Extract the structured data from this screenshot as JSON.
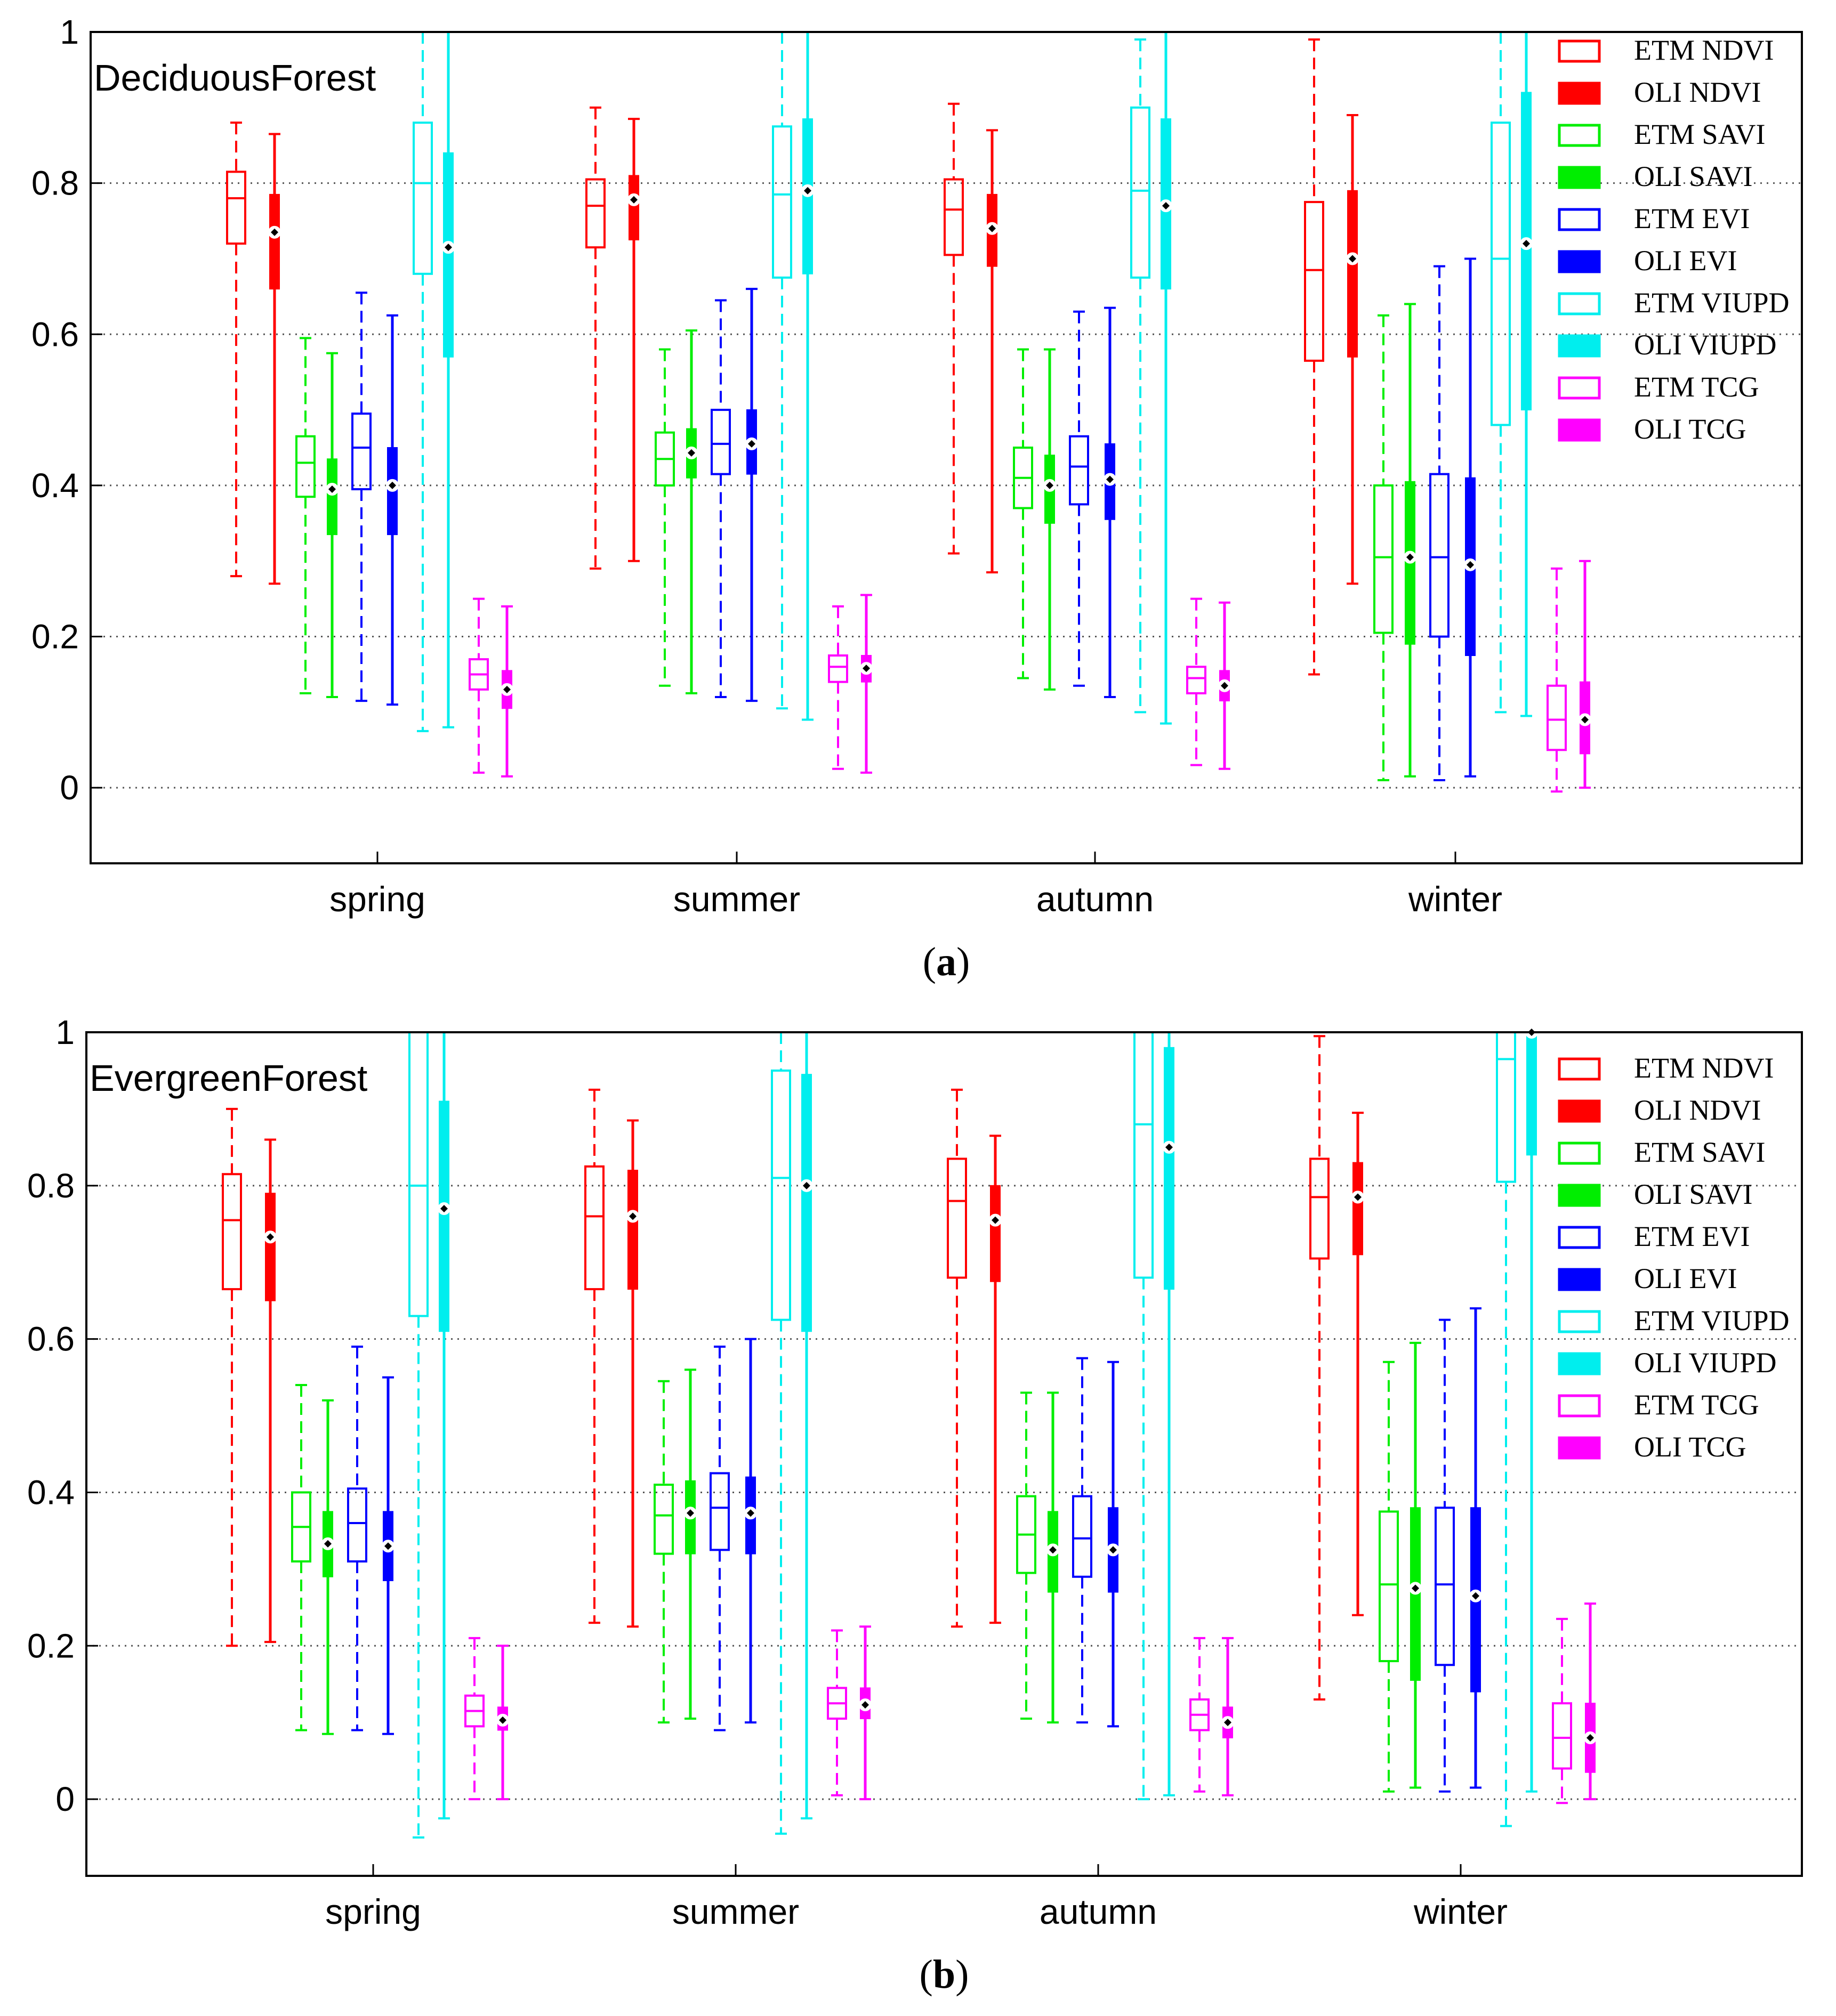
{
  "chart_data": [
    {
      "type": "box",
      "panel_label": "a",
      "title": "DeciduousForest",
      "categories": [
        "spring",
        "summer",
        "autumn",
        "winter"
      ],
      "ylim": [
        -0.1,
        1
      ],
      "yticks": [
        0,
        0.2,
        0.4,
        0.6,
        0.8,
        1
      ],
      "ytick_labels": [
        "0",
        "0.2",
        "0.4",
        "0.6",
        "0.8",
        "1"
      ],
      "grid": "horizontal dotted",
      "legend_position": "top-right",
      "series": [
        {
          "name": "ETM NDVI",
          "color": "#ff0000",
          "style": "etm",
          "data": [
            {
              "wmin": 0.28,
              "q1": 0.72,
              "median": 0.78,
              "q3": 0.815,
              "wmax": 0.88,
              "mean": null
            },
            {
              "wmin": 0.29,
              "q1": 0.715,
              "median": 0.77,
              "q3": 0.805,
              "wmax": 0.9,
              "mean": null
            },
            {
              "wmin": 0.31,
              "q1": 0.705,
              "median": 0.765,
              "q3": 0.805,
              "wmax": 0.905,
              "mean": null
            },
            {
              "wmin": 0.15,
              "q1": 0.565,
              "median": 0.685,
              "q3": 0.775,
              "wmax": 0.99,
              "mean": null
            }
          ]
        },
        {
          "name": "OLI NDVI",
          "color": "#ff0000",
          "style": "oli",
          "data": [
            {
              "wmin": 0.27,
              "q1": 0.66,
              "median": 0.735,
              "q3": 0.785,
              "wmax": 0.865,
              "mean": 0.735
            },
            {
              "wmin": 0.3,
              "q1": 0.725,
              "median": 0.78,
              "q3": 0.81,
              "wmax": 0.885,
              "mean": 0.778
            },
            {
              "wmin": 0.285,
              "q1": 0.69,
              "median": 0.74,
              "q3": 0.785,
              "wmax": 0.87,
              "mean": 0.74
            },
            {
              "wmin": 0.27,
              "q1": 0.57,
              "median": 0.7,
              "q3": 0.79,
              "wmax": 0.89,
              "mean": 0.7
            }
          ]
        },
        {
          "name": "ETM SAVI",
          "color": "#00ee00",
          "style": "etm",
          "data": [
            {
              "wmin": 0.125,
              "q1": 0.385,
              "median": 0.43,
              "q3": 0.465,
              "wmax": 0.595,
              "mean": null
            },
            {
              "wmin": 0.135,
              "q1": 0.4,
              "median": 0.435,
              "q3": 0.47,
              "wmax": 0.58,
              "mean": null
            },
            {
              "wmin": 0.145,
              "q1": 0.37,
              "median": 0.41,
              "q3": 0.45,
              "wmax": 0.58,
              "mean": null
            },
            {
              "wmin": 0.01,
              "q1": 0.205,
              "median": 0.305,
              "q3": 0.4,
              "wmax": 0.625,
              "mean": null
            }
          ]
        },
        {
          "name": "OLI SAVI",
          "color": "#00ee00",
          "style": "oli",
          "data": [
            {
              "wmin": 0.12,
              "q1": 0.335,
              "median": 0.395,
              "q3": 0.435,
              "wmax": 0.575,
              "mean": 0.395
            },
            {
              "wmin": 0.125,
              "q1": 0.41,
              "median": 0.445,
              "q3": 0.475,
              "wmax": 0.605,
              "mean": 0.443
            },
            {
              "wmin": 0.13,
              "q1": 0.35,
              "median": 0.4,
              "q3": 0.44,
              "wmax": 0.58,
              "mean": 0.4
            },
            {
              "wmin": 0.015,
              "q1": 0.19,
              "median": 0.305,
              "q3": 0.405,
              "wmax": 0.64,
              "mean": 0.305
            }
          ]
        },
        {
          "name": "ETM EVI",
          "color": "#0000ff",
          "style": "etm",
          "data": [
            {
              "wmin": 0.115,
              "q1": 0.395,
              "median": 0.45,
              "q3": 0.495,
              "wmax": 0.655,
              "mean": null
            },
            {
              "wmin": 0.12,
              "q1": 0.415,
              "median": 0.455,
              "q3": 0.5,
              "wmax": 0.645,
              "mean": null
            },
            {
              "wmin": 0.135,
              "q1": 0.375,
              "median": 0.425,
              "q3": 0.465,
              "wmax": 0.63,
              "mean": null
            },
            {
              "wmin": 0.01,
              "q1": 0.2,
              "median": 0.305,
              "q3": 0.415,
              "wmax": 0.69,
              "mean": null
            }
          ]
        },
        {
          "name": "OLI EVI",
          "color": "#0000ff",
          "style": "oli",
          "data": [
            {
              "wmin": 0.11,
              "q1": 0.335,
              "median": 0.4,
              "q3": 0.45,
              "wmax": 0.625,
              "mean": 0.4
            },
            {
              "wmin": 0.115,
              "q1": 0.415,
              "median": 0.455,
              "q3": 0.5,
              "wmax": 0.66,
              "mean": 0.455
            },
            {
              "wmin": 0.12,
              "q1": 0.355,
              "median": 0.41,
              "q3": 0.455,
              "wmax": 0.635,
              "mean": 0.408
            },
            {
              "wmin": 0.015,
              "q1": 0.175,
              "median": 0.295,
              "q3": 0.41,
              "wmax": 0.7,
              "mean": 0.295
            }
          ]
        },
        {
          "name": "ETM VIUPD",
          "color": "#00eeee",
          "style": "etm",
          "data": [
            {
              "wmin": 0.075,
              "q1": 0.68,
              "median": 0.8,
              "q3": 0.88,
              "wmax": 1.0,
              "mean": null
            },
            {
              "wmin": 0.105,
              "q1": 0.675,
              "median": 0.785,
              "q3": 0.875,
              "wmax": 1.0,
              "mean": null
            },
            {
              "wmin": 0.1,
              "q1": 0.675,
              "median": 0.79,
              "q3": 0.9,
              "wmax": 0.99,
              "mean": null
            },
            {
              "wmin": 0.1,
              "q1": 0.48,
              "median": 0.7,
              "q3": 0.88,
              "wmax": 1.0,
              "mean": null
            }
          ]
        },
        {
          "name": "OLI VIUPD",
          "color": "#00eeee",
          "style": "oli",
          "data": [
            {
              "wmin": 0.08,
              "q1": 0.57,
              "median": 0.715,
              "q3": 0.84,
              "wmax": 1.0,
              "mean": 0.715
            },
            {
              "wmin": 0.09,
              "q1": 0.68,
              "median": 0.79,
              "q3": 0.885,
              "wmax": 1.0,
              "mean": 0.79
            },
            {
              "wmin": 0.085,
              "q1": 0.66,
              "median": 0.77,
              "q3": 0.885,
              "wmax": 1.0,
              "mean": 0.77
            },
            {
              "wmin": 0.095,
              "q1": 0.5,
              "median": 0.72,
              "q3": 0.92,
              "wmax": 1.0,
              "mean": 0.72
            }
          ]
        },
        {
          "name": "ETM TCG",
          "color": "#ff00ff",
          "style": "etm",
          "data": [
            {
              "wmin": 0.02,
              "q1": 0.13,
              "median": 0.15,
              "q3": 0.17,
              "wmax": 0.25,
              "mean": null
            },
            {
              "wmin": 0.025,
              "q1": 0.14,
              "median": 0.16,
              "q3": 0.175,
              "wmax": 0.24,
              "mean": null
            },
            {
              "wmin": 0.03,
              "q1": 0.125,
              "median": 0.145,
              "q3": 0.16,
              "wmax": 0.25,
              "mean": null
            },
            {
              "wmin": -0.005,
              "q1": 0.05,
              "median": 0.09,
              "q3": 0.135,
              "wmax": 0.29,
              "mean": null
            }
          ]
        },
        {
          "name": "OLI TCG",
          "color": "#ff00ff",
          "style": "oli",
          "data": [
            {
              "wmin": 0.015,
              "q1": 0.105,
              "median": 0.13,
              "q3": 0.155,
              "wmax": 0.24,
              "mean": 0.13
            },
            {
              "wmin": 0.02,
              "q1": 0.14,
              "median": 0.16,
              "q3": 0.175,
              "wmax": 0.255,
              "mean": 0.158
            },
            {
              "wmin": 0.025,
              "q1": 0.115,
              "median": 0.135,
              "q3": 0.155,
              "wmax": 0.245,
              "mean": 0.135
            },
            {
              "wmin": 0.0,
              "q1": 0.045,
              "median": 0.09,
              "q3": 0.14,
              "wmax": 0.3,
              "mean": 0.09
            }
          ]
        }
      ]
    },
    {
      "type": "box",
      "panel_label": "b",
      "title": "EvergreenForest",
      "categories": [
        "spring",
        "summer",
        "autumn",
        "winter"
      ],
      "ylim": [
        -0.1,
        1
      ],
      "yticks": [
        0,
        0.2,
        0.4,
        0.6,
        0.8,
        1
      ],
      "ytick_labels": [
        "0",
        "0.2",
        "0.4",
        "0.6",
        "0.8",
        "1"
      ],
      "grid": "horizontal dotted",
      "legend_position": "top-right",
      "series": [
        {
          "name": "ETM NDVI",
          "color": "#ff0000",
          "style": "etm",
          "data": [
            {
              "wmin": 0.2,
              "q1": 0.665,
              "median": 0.755,
              "q3": 0.815,
              "wmax": 0.9,
              "mean": null
            },
            {
              "wmin": 0.23,
              "q1": 0.665,
              "median": 0.76,
              "q3": 0.825,
              "wmax": 0.925,
              "mean": null
            },
            {
              "wmin": 0.225,
              "q1": 0.68,
              "median": 0.78,
              "q3": 0.835,
              "wmax": 0.925,
              "mean": null
            },
            {
              "wmin": 0.13,
              "q1": 0.705,
              "median": 0.785,
              "q3": 0.835,
              "wmax": 0.995,
              "mean": null
            }
          ]
        },
        {
          "name": "OLI NDVI",
          "color": "#ff0000",
          "style": "oli",
          "data": [
            {
              "wmin": 0.205,
              "q1": 0.65,
              "median": 0.735,
              "q3": 0.79,
              "wmax": 0.86,
              "mean": 0.733
            },
            {
              "wmin": 0.225,
              "q1": 0.665,
              "median": 0.76,
              "q3": 0.82,
              "wmax": 0.885,
              "mean": 0.76
            },
            {
              "wmin": 0.23,
              "q1": 0.675,
              "median": 0.755,
              "q3": 0.8,
              "wmax": 0.865,
              "mean": 0.755
            },
            {
              "wmin": 0.24,
              "q1": 0.71,
              "median": 0.785,
              "q3": 0.83,
              "wmax": 0.895,
              "mean": 0.785
            }
          ]
        },
        {
          "name": "ETM SAVI",
          "color": "#00ee00",
          "style": "etm",
          "data": [
            {
              "wmin": 0.09,
              "q1": 0.31,
              "median": 0.355,
              "q3": 0.4,
              "wmax": 0.54,
              "mean": null
            },
            {
              "wmin": 0.1,
              "q1": 0.32,
              "median": 0.37,
              "q3": 0.41,
              "wmax": 0.545,
              "mean": null
            },
            {
              "wmin": 0.105,
              "q1": 0.295,
              "median": 0.345,
              "q3": 0.395,
              "wmax": 0.53,
              "mean": null
            },
            {
              "wmin": 0.01,
              "q1": 0.18,
              "median": 0.28,
              "q3": 0.375,
              "wmax": 0.57,
              "mean": null
            }
          ]
        },
        {
          "name": "OLI SAVI",
          "color": "#00ee00",
          "style": "oli",
          "data": [
            {
              "wmin": 0.085,
              "q1": 0.29,
              "median": 0.335,
              "q3": 0.375,
              "wmax": 0.52,
              "mean": 0.333
            },
            {
              "wmin": 0.105,
              "q1": 0.32,
              "median": 0.375,
              "q3": 0.415,
              "wmax": 0.56,
              "mean": 0.373
            },
            {
              "wmin": 0.1,
              "q1": 0.27,
              "median": 0.325,
              "q3": 0.375,
              "wmax": 0.53,
              "mean": 0.325
            },
            {
              "wmin": 0.015,
              "q1": 0.155,
              "median": 0.275,
              "q3": 0.38,
              "wmax": 0.595,
              "mean": 0.275
            }
          ]
        },
        {
          "name": "ETM EVI",
          "color": "#0000ff",
          "style": "etm",
          "data": [
            {
              "wmin": 0.09,
              "q1": 0.31,
              "median": 0.36,
              "q3": 0.405,
              "wmax": 0.59,
              "mean": null
            },
            {
              "wmin": 0.09,
              "q1": 0.325,
              "median": 0.38,
              "q3": 0.425,
              "wmax": 0.59,
              "mean": null
            },
            {
              "wmin": 0.1,
              "q1": 0.29,
              "median": 0.34,
              "q3": 0.395,
              "wmax": 0.575,
              "mean": null
            },
            {
              "wmin": 0.01,
              "q1": 0.175,
              "median": 0.28,
              "q3": 0.38,
              "wmax": 0.625,
              "mean": null
            }
          ]
        },
        {
          "name": "OLI EVI",
          "color": "#0000ff",
          "style": "oli",
          "data": [
            {
              "wmin": 0.085,
              "q1": 0.285,
              "median": 0.33,
              "q3": 0.375,
              "wmax": 0.55,
              "mean": 0.33
            },
            {
              "wmin": 0.1,
              "q1": 0.32,
              "median": 0.375,
              "q3": 0.42,
              "wmax": 0.6,
              "mean": 0.373
            },
            {
              "wmin": 0.095,
              "q1": 0.27,
              "median": 0.325,
              "q3": 0.38,
              "wmax": 0.57,
              "mean": 0.325
            },
            {
              "wmin": 0.015,
              "q1": 0.14,
              "median": 0.265,
              "q3": 0.38,
              "wmax": 0.64,
              "mean": 0.265
            }
          ]
        },
        {
          "name": "ETM VIUPD",
          "color": "#00eeee",
          "style": "etm",
          "data": [
            {
              "wmin": -0.05,
              "q1": 0.63,
              "median": 0.8,
              "q3": 1.0,
              "wmax": 1.0,
              "mean": null
            },
            {
              "wmin": -0.045,
              "q1": 0.625,
              "median": 0.81,
              "q3": 0.95,
              "wmax": 1.0,
              "mean": null
            },
            {
              "wmin": 0.0,
              "q1": 0.68,
              "median": 0.88,
              "q3": 1.0,
              "wmax": 1.0,
              "mean": null
            },
            {
              "wmin": -0.035,
              "q1": 0.805,
              "median": 0.965,
              "q3": 1.0,
              "wmax": 1.0,
              "mean": null
            }
          ]
        },
        {
          "name": "OLI VIUPD",
          "color": "#00eeee",
          "style": "oli",
          "data": [
            {
              "wmin": -0.025,
              "q1": 0.61,
              "median": 0.77,
              "q3": 0.91,
              "wmax": 1.0,
              "mean": 0.77
            },
            {
              "wmin": -0.025,
              "q1": 0.61,
              "median": 0.8,
              "q3": 0.945,
              "wmax": 1.0,
              "mean": 0.8
            },
            {
              "wmin": 0.005,
              "q1": 0.665,
              "median": 0.85,
              "q3": 0.98,
              "wmax": 1.0,
              "mean": 0.85
            },
            {
              "wmin": 0.01,
              "q1": 0.84,
              "median": 1.0,
              "q3": 1.0,
              "wmax": 1.0,
              "mean": 1.0
            }
          ]
        },
        {
          "name": "ETM TCG",
          "color": "#ff00ff",
          "style": "etm",
          "data": [
            {
              "wmin": 0.0,
              "q1": 0.095,
              "median": 0.115,
              "q3": 0.135,
              "wmax": 0.21,
              "mean": null
            },
            {
              "wmin": 0.005,
              "q1": 0.105,
              "median": 0.125,
              "q3": 0.145,
              "wmax": 0.22,
              "mean": null
            },
            {
              "wmin": 0.01,
              "q1": 0.09,
              "median": 0.11,
              "q3": 0.13,
              "wmax": 0.21,
              "mean": null
            },
            {
              "wmin": -0.005,
              "q1": 0.04,
              "median": 0.08,
              "q3": 0.125,
              "wmax": 0.235,
              "mean": null
            }
          ]
        },
        {
          "name": "OLI TCG",
          "color": "#ff00ff",
          "style": "oli",
          "data": [
            {
              "wmin": 0.0,
              "q1": 0.09,
              "median": 0.105,
              "q3": 0.12,
              "wmax": 0.2,
              "mean": 0.103
            },
            {
              "wmin": 0.0,
              "q1": 0.105,
              "median": 0.12,
              "q3": 0.145,
              "wmax": 0.225,
              "mean": 0.123
            },
            {
              "wmin": 0.005,
              "q1": 0.08,
              "median": 0.1,
              "q3": 0.12,
              "wmax": 0.21,
              "mean": 0.1
            },
            {
              "wmin": 0.0,
              "q1": 0.035,
              "median": 0.08,
              "q3": 0.125,
              "wmax": 0.255,
              "mean": 0.08
            }
          ]
        }
      ]
    }
  ]
}
